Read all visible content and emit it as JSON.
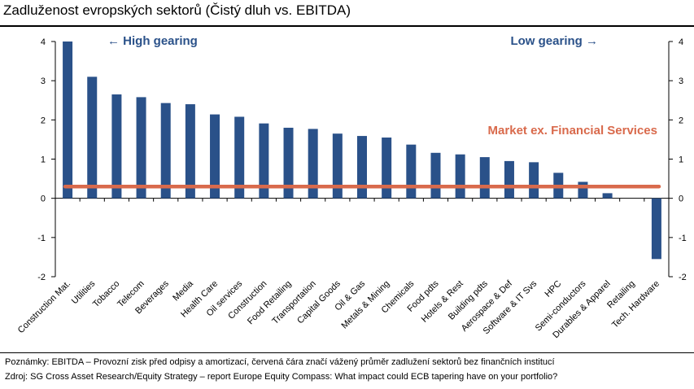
{
  "title": "Zadluženost evropských sektorů (Čistý dluh vs. EBITDA)",
  "notes": {
    "line1": "Poznámky: EBITDA – Provozní zisk před odpisy a amortizací, červená čára značí vážený průměr zadlužení sektorů bez finančních institucí",
    "line2": "Zdroj: SG Cross Asset Research/Equity Strategy – report Europe Equity Compass: What impact could ECB tapering have on your portfolio?"
  },
  "colors": {
    "bar": "#2a5189",
    "market_line": "#d96a4c",
    "annotation_blue": "#2a5189",
    "annotation_orange": "#d96a4c"
  },
  "chart_data": {
    "type": "bar",
    "categories": [
      "Construction Mat.",
      "Utilities",
      "Tobacco",
      "Telecom",
      "Beverages",
      "Media",
      "Health Care",
      "Oil services",
      "Construction",
      "Food Retailing",
      "Transportation",
      "Capital Goods",
      "Oil & Gas",
      "Metals & Mining",
      "Chemicals",
      "Food pdts",
      "Hotels & Rest",
      "Building pdts",
      "Aerospace & Def",
      "Software & IT Svs",
      "HPC",
      "Semi-conductors",
      "Durables & Apparel",
      "Retailing",
      "Tech. Hardware"
    ],
    "values": [
      4.0,
      3.1,
      2.65,
      2.58,
      2.43,
      2.4,
      2.14,
      2.08,
      1.91,
      1.8,
      1.77,
      1.65,
      1.59,
      1.55,
      1.37,
      1.16,
      1.12,
      1.05,
      0.95,
      0.92,
      0.65,
      0.42,
      0.13,
      0.0,
      -1.55
    ],
    "reference_line": {
      "label": "Market ex. Financial Services",
      "value": 0.3
    },
    "annotations": {
      "left": "← High gearing",
      "right": "Low gearing →"
    },
    "ylim": [
      -2,
      4
    ],
    "yticks": [
      "4",
      "3",
      "2",
      "1",
      "0",
      "-1",
      "-2"
    ],
    "ytick_values": [
      4,
      3,
      2,
      1,
      0,
      -1,
      -2
    ],
    "grid": false,
    "xlabel": "",
    "ylabel": ""
  }
}
